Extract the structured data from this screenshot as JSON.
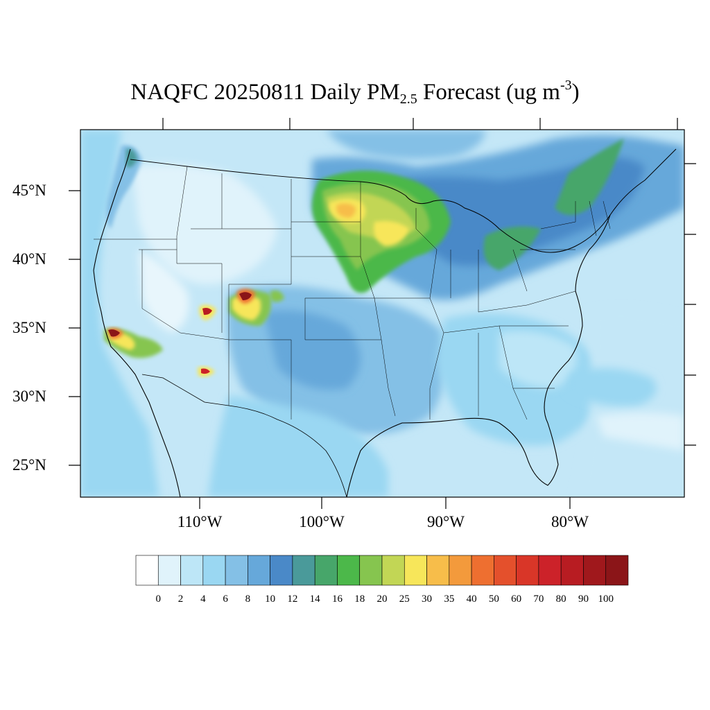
{
  "title": {
    "prefix": "NAQFC 20250811 Daily PM",
    "sub": "2.5",
    "middle": " Forecast (ug m",
    "sup": "-3",
    "suffix": ")"
  },
  "axes": {
    "lat_labels": [
      "45°N",
      "40°N",
      "35°N",
      "30°N",
      "25°N"
    ],
    "lon_labels": [
      "110°W",
      "100°W",
      "90°W",
      "80°W"
    ]
  },
  "colorbar": {
    "labels": [
      "0",
      "2",
      "4",
      "6",
      "8",
      "10",
      "12",
      "14",
      "16",
      "18",
      "20",
      "25",
      "30",
      "35",
      "40",
      "50",
      "60",
      "70",
      "80",
      "90",
      "100"
    ],
    "colors": [
      "#ffffff",
      "#e0f3fb",
      "#bde6f7",
      "#9ad7f2",
      "#84c0e6",
      "#66a8da",
      "#4a89c8",
      "#4a9a9a",
      "#47a66a",
      "#4cb84a",
      "#86c54f",
      "#c2d655",
      "#f7e65a",
      "#f7bd4a",
      "#f39a3c",
      "#ee6f30",
      "#e4502c",
      "#d93628",
      "#cc2229",
      "#b81c22",
      "#a0181c",
      "#8b1518"
    ]
  }
}
